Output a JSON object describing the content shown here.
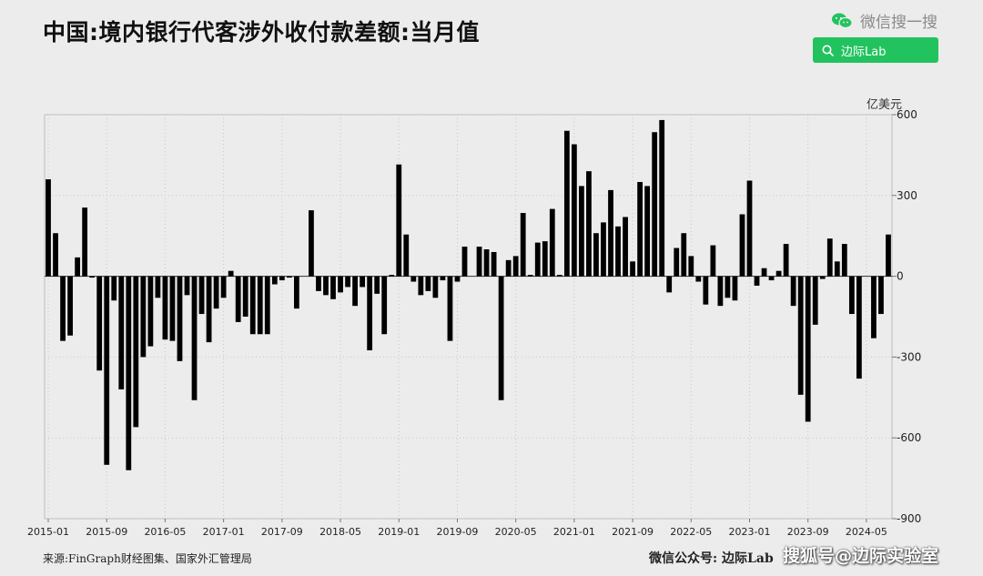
{
  "title": "中国:境内银行代客涉外收付款差额:当月值",
  "wechat": {
    "logo_text": "微信搜一搜",
    "search_label": "边际Lab"
  },
  "footer": {
    "source": "来源:FinGraph财经图集、国家外汇管理局",
    "account": "微信公众号: 边际Lab",
    "watermark": "搜狐号@边际实验室"
  },
  "colors": {
    "bar": "#000000",
    "brand": "#22c35e",
    "background": "#ececec"
  },
  "chart_data": {
    "type": "bar",
    "ylabel": "亿美元",
    "ylim": [
      -900,
      600
    ],
    "yticks": [
      600,
      300,
      0,
      -300,
      -600,
      -900
    ],
    "xticks": [
      "2015-01",
      "2015-09",
      "2016-05",
      "2017-01",
      "2017-09",
      "2018-05",
      "2019-01",
      "2019-09",
      "2020-05",
      "2021-01",
      "2021-09",
      "2022-05",
      "2023-01",
      "2023-09",
      "2024-05"
    ],
    "grid": true,
    "start_month": "2015-01",
    "values": [
      360,
      160,
      -240,
      -220,
      70,
      255,
      -5,
      -350,
      -700,
      -90,
      -420,
      -720,
      -560,
      -300,
      -260,
      -80,
      -235,
      -240,
      -315,
      -70,
      -460,
      -140,
      -245,
      -120,
      -80,
      20,
      -170,
      -150,
      -215,
      -215,
      -215,
      -30,
      -15,
      -5,
      -120,
      0,
      245,
      -55,
      -70,
      -85,
      -60,
      -40,
      -110,
      -40,
      -275,
      -65,
      -215,
      5,
      415,
      155,
      -20,
      -70,
      -55,
      -80,
      -15,
      -240,
      -20,
      110,
      0,
      110,
      100,
      90,
      -460,
      60,
      75,
      235,
      5,
      125,
      130,
      250,
      5,
      540,
      490,
      335,
      390,
      160,
      200,
      320,
      185,
      220,
      55,
      350,
      335,
      535,
      580,
      -60,
      105,
      160,
      75,
      -20,
      -105,
      115,
      -110,
      -80,
      -90,
      230,
      355,
      -35,
      30,
      -15,
      20,
      120,
      -110,
      -440,
      -540,
      -180,
      -10,
      140,
      55,
      120,
      -140,
      -380,
      0,
      -230,
      -140,
      155
    ]
  }
}
